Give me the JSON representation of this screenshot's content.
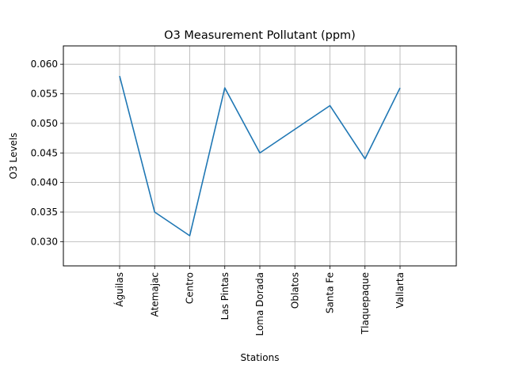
{
  "chart_data": {
    "type": "line",
    "title": "O3 Measurement Pollutant (ppm)",
    "xlabel": "Stations",
    "ylabel": "O3 Levels",
    "categories": [
      "Águilas",
      "Atemajac",
      "Centro",
      "Las Pintas",
      "Loma Dorada",
      "Oblatos",
      "Santa Fe",
      "Tlaquepaque",
      "Vallarta"
    ],
    "series": [
      {
        "values": [
          0.058,
          0.035,
          0.031,
          0.056,
          0.045,
          0.049,
          0.053,
          0.044,
          0.056
        ],
        "color": "#1f77b4"
      }
    ],
    "ylim": [
      0.0259,
      0.0631
    ],
    "yticks": [
      0.03,
      0.035,
      0.04,
      0.045,
      0.05,
      0.055,
      0.06
    ],
    "ytick_labels": [
      "0.030",
      "0.035",
      "0.040",
      "0.045",
      "0.050",
      "0.055",
      "0.060"
    ],
    "grid": true,
    "legend": "none"
  }
}
